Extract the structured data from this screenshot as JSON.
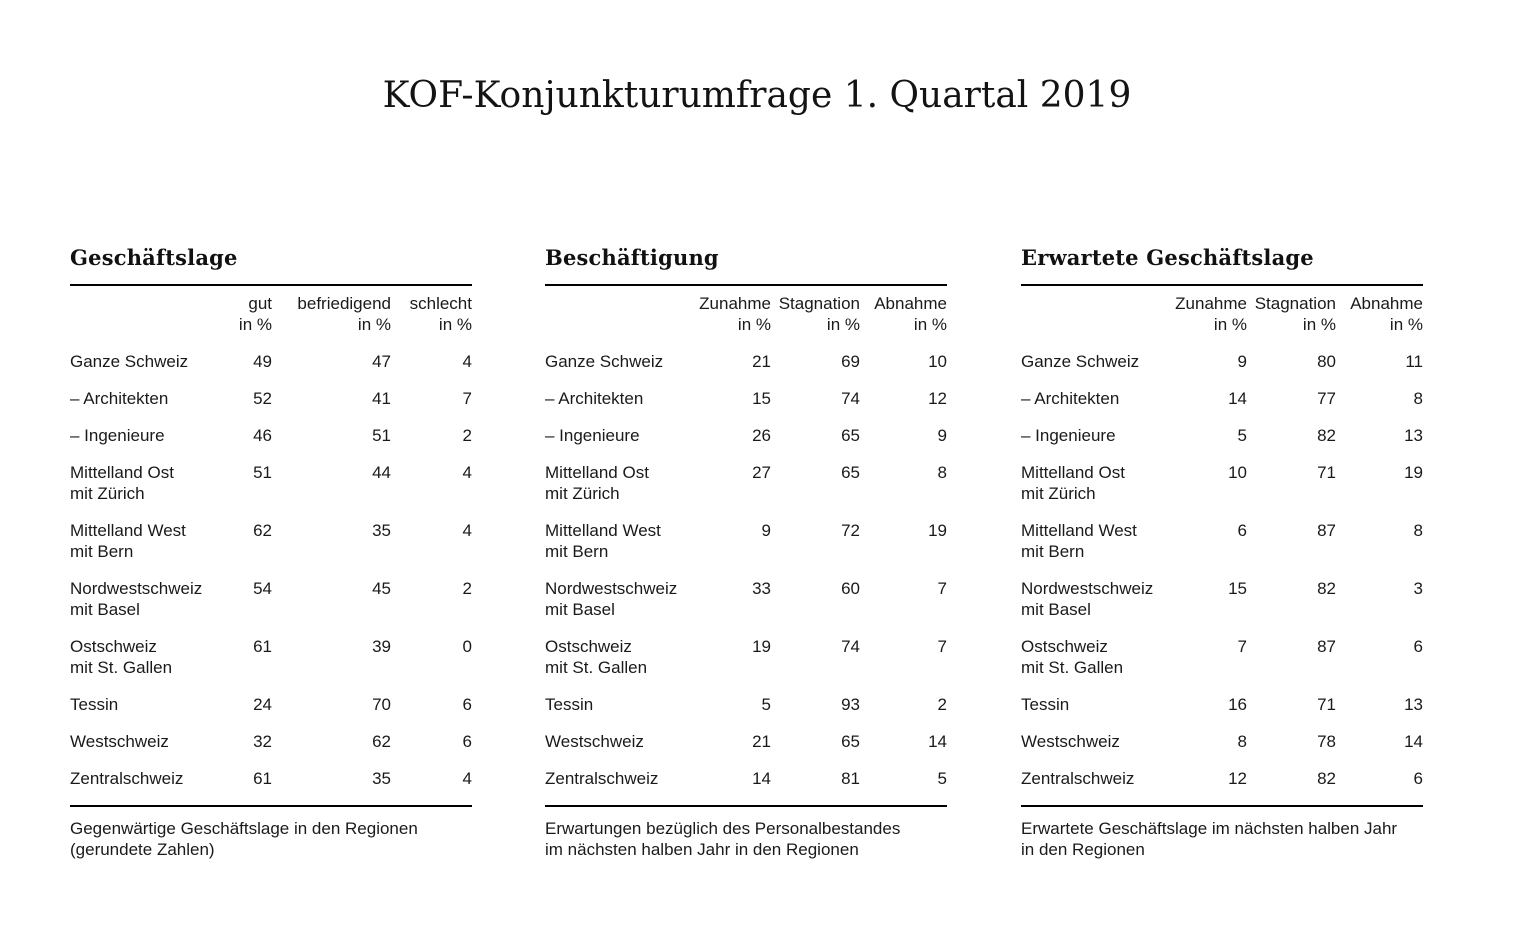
{
  "page": {
    "title": "KOF-Konjunkturumfrage 1. Quartal 2019"
  },
  "unit_label": "in %",
  "colors": {
    "background": "#ffffff",
    "text": "#1a1a1a",
    "rule": "#000000"
  },
  "tables": [
    {
      "title": "Geschäftslage",
      "columns": [
        "gut",
        "befriedigend",
        "schlecht"
      ],
      "rows": [
        {
          "label": "Ganze Schweiz",
          "sublabel": "",
          "values": [
            "49",
            "47",
            "4"
          ]
        },
        {
          "label": "– Architekten",
          "sublabel": "",
          "values": [
            "52",
            "41",
            "7"
          ]
        },
        {
          "label": "– Ingenieure",
          "sublabel": "",
          "values": [
            "46",
            "51",
            "2"
          ]
        },
        {
          "label": "Mittelland Ost",
          "sublabel": "mit Zürich",
          "values": [
            "51",
            "44",
            "4"
          ]
        },
        {
          "label": "Mittelland West",
          "sublabel": "mit Bern",
          "values": [
            "62",
            "35",
            "4"
          ]
        },
        {
          "label": "Nordwestschweiz",
          "sublabel": "mit Basel",
          "values": [
            "54",
            "45",
            "2"
          ]
        },
        {
          "label": "Ostschweiz",
          "sublabel": "mit St. Gallen",
          "values": [
            "61",
            "39",
            "0"
          ]
        },
        {
          "label": "Tessin",
          "sublabel": "",
          "values": [
            "24",
            "70",
            "6"
          ]
        },
        {
          "label": "Westschweiz",
          "sublabel": "",
          "values": [
            "32",
            "62",
            "6"
          ]
        },
        {
          "label": "Zentralschweiz",
          "sublabel": "",
          "values": [
            "61",
            "35",
            "4"
          ]
        }
      ],
      "footnote": [
        "Gegenwärtige Geschäftslage in den Regionen",
        "(gerundete Zahlen)"
      ]
    },
    {
      "title": "Beschäftigung",
      "columns": [
        "Zunahme",
        "Stagnation",
        "Abnahme"
      ],
      "rows": [
        {
          "label": "Ganze Schweiz",
          "sublabel": "",
          "values": [
            "21",
            "69",
            "10"
          ]
        },
        {
          "label": "– Architekten",
          "sublabel": "",
          "values": [
            "15",
            "74",
            "12"
          ]
        },
        {
          "label": "– Ingenieure",
          "sublabel": "",
          "values": [
            "26",
            "65",
            "9"
          ]
        },
        {
          "label": "Mittelland Ost",
          "sublabel": "mit Zürich",
          "values": [
            "27",
            "65",
            "8"
          ]
        },
        {
          "label": "Mittelland West",
          "sublabel": "mit Bern",
          "values": [
            "9",
            "72",
            "19"
          ]
        },
        {
          "label": "Nordwestschweiz",
          "sublabel": "mit Basel",
          "values": [
            "33",
            "60",
            "7"
          ]
        },
        {
          "label": "Ostschweiz",
          "sublabel": "mit St. Gallen",
          "values": [
            "19",
            "74",
            "7"
          ]
        },
        {
          "label": "Tessin",
          "sublabel": "",
          "values": [
            "5",
            "93",
            "2"
          ]
        },
        {
          "label": "Westschweiz",
          "sublabel": "",
          "values": [
            "21",
            "65",
            "14"
          ]
        },
        {
          "label": "Zentralschweiz",
          "sublabel": "",
          "values": [
            "14",
            "81",
            "5"
          ]
        }
      ],
      "footnote": [
        "Erwartungen bezüglich des Personalbestandes",
        "im nächsten halben Jahr in den Regionen"
      ]
    },
    {
      "title": "Erwartete Geschäftslage",
      "columns": [
        "Zunahme",
        "Stagnation",
        "Abnahme"
      ],
      "rows": [
        {
          "label": "Ganze Schweiz",
          "sublabel": "",
          "values": [
            "9",
            "80",
            "11"
          ]
        },
        {
          "label": "– Architekten",
          "sublabel": "",
          "values": [
            "14",
            "77",
            "8"
          ]
        },
        {
          "label": "– Ingenieure",
          "sublabel": "",
          "values": [
            "5",
            "82",
            "13"
          ]
        },
        {
          "label": "Mittelland Ost",
          "sublabel": "mit Zürich",
          "values": [
            "10",
            "71",
            "19"
          ]
        },
        {
          "label": "Mittelland West",
          "sublabel": "mit Bern",
          "values": [
            "6",
            "87",
            "8"
          ]
        },
        {
          "label": "Nordwestschweiz",
          "sublabel": "mit Basel",
          "values": [
            "15",
            "82",
            "3"
          ]
        },
        {
          "label": "Ostschweiz",
          "sublabel": "mit St. Gallen",
          "values": [
            "7",
            "87",
            "6"
          ]
        },
        {
          "label": "Tessin",
          "sublabel": "",
          "values": [
            "16",
            "71",
            "13"
          ]
        },
        {
          "label": "Westschweiz",
          "sublabel": "",
          "values": [
            "8",
            "78",
            "14"
          ]
        },
        {
          "label": "Zentralschweiz",
          "sublabel": "",
          "values": [
            "12",
            "82",
            "6"
          ]
        }
      ],
      "footnote": [
        "Erwartete Geschäftslage im nächsten halben Jahr",
        "in den Regionen"
      ]
    }
  ]
}
